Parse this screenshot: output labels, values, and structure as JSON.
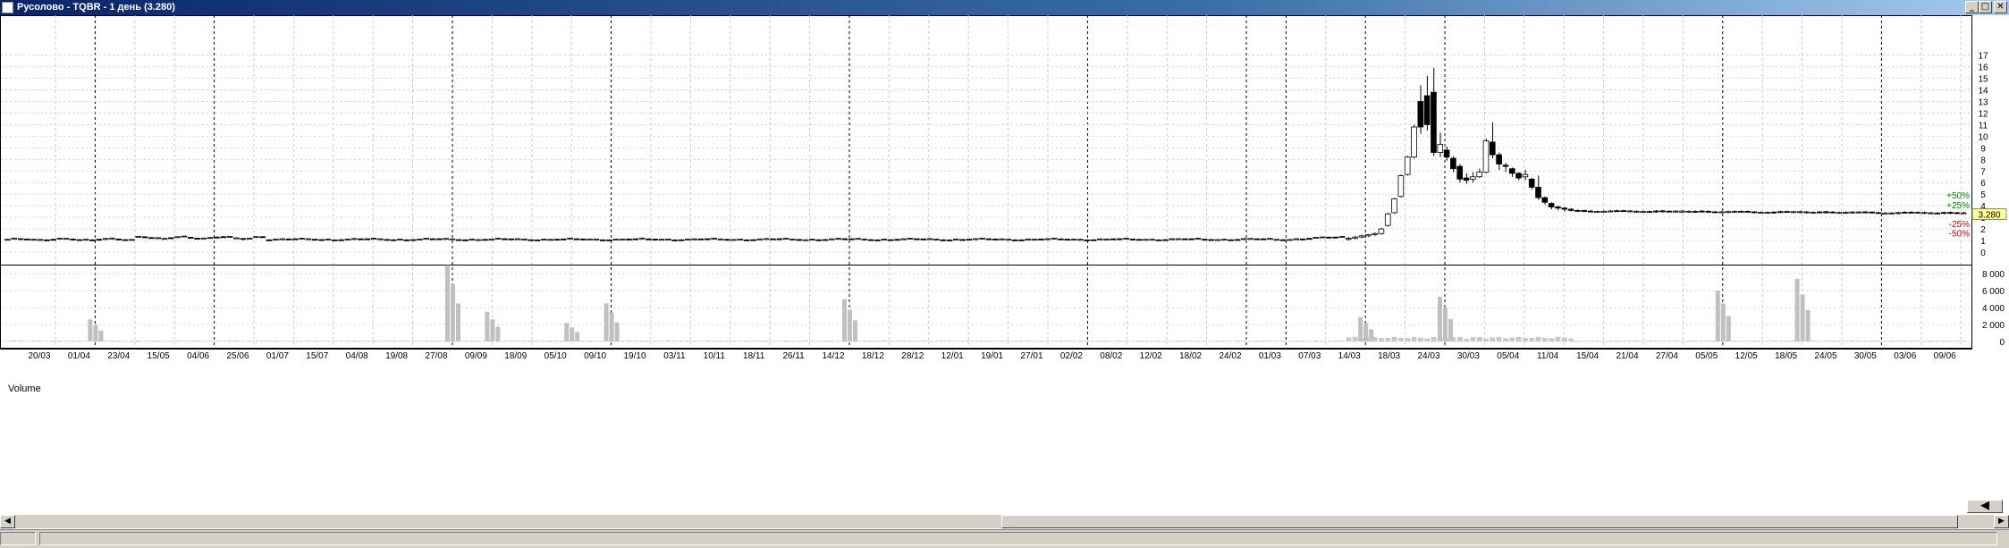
{
  "window": {
    "title": "Русолово - TQBR - 1 день (3.280)",
    "minimize_label": "_",
    "maximize_label": "□",
    "close_label": "✕"
  },
  "panels": {
    "volume_title": "Volume"
  },
  "price": {
    "last_label": "3.280",
    "last": 3.28,
    "levels": [
      {
        "label": "+50%",
        "value": 4.92,
        "color": "#008000"
      },
      {
        "label": "+25%",
        "value": 4.1,
        "color": "#008000"
      },
      {
        "label": "-25%",
        "value": 2.46,
        "color": "#c00000"
      },
      {
        "label": "-50%",
        "value": 1.64,
        "color": "#c00000"
      }
    ]
  },
  "chart_data": {
    "type": "candlestick",
    "price_axis": {
      "min": 0,
      "max": 17,
      "ticks": [
        0,
        1,
        2,
        3,
        4,
        5,
        6,
        7,
        8,
        9,
        10,
        11,
        12,
        13,
        14,
        15,
        16,
        17
      ]
    },
    "volume_axis": {
      "min": 0,
      "max": 8000,
      "ticks": [
        0,
        2000,
        4000,
        6000,
        8000
      ],
      "tick_labels": [
        "0",
        "2 000",
        "4 000",
        "6 000",
        "8 000"
      ]
    },
    "x_labels": [
      "20/03",
      "01/04",
      "23/04",
      "15/05",
      "04/06",
      "25/06",
      "01/07",
      "15/07",
      "04/08",
      "19/08",
      "27/08",
      "09/09",
      "18/09",
      "05/10",
      "09/10",
      "19/10",
      "03/11",
      "10/11",
      "18/11",
      "26/11",
      "14/12",
      "18/12",
      "28/12",
      "12/01",
      "19/01",
      "27/01",
      "02/02",
      "08/02",
      "12/02",
      "18/02",
      "24/02",
      "01/03",
      "07/03",
      "14/03",
      "18/03",
      "24/03",
      "30/03",
      "05/04",
      "11/04",
      "15/04",
      "21/04",
      "27/04",
      "05/05",
      "12/05",
      "18/05",
      "24/05",
      "30/05",
      "03/06",
      "09/06"
    ],
    "volume_spikes": [
      {
        "label": "01/04",
        "value": 2600
      },
      {
        "label": "27/08",
        "value": 9000
      },
      {
        "label": "09/09",
        "value": 3500
      },
      {
        "label": "05/10",
        "value": 2200
      },
      {
        "label": "09/10",
        "value": 4500
      },
      {
        "label": "14/12",
        "value": 5000
      },
      {
        "label": "14/03",
        "value": 2900
      },
      {
        "label": "24/03",
        "value": 5300
      },
      {
        "label": "05/05",
        "value": 6000
      },
      {
        "label": "18/05",
        "value": 7400
      }
    ],
    "peak": {
      "high": 15.9,
      "low_after": 8.3
    },
    "grid": true
  }
}
